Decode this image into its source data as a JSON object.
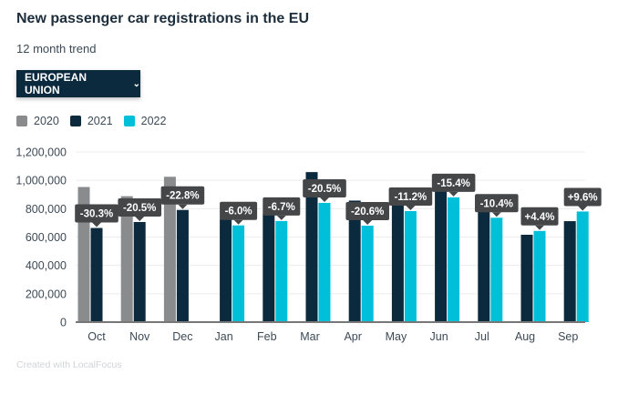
{
  "header": {
    "title": "New passenger car registrations in the EU",
    "subtitle": "12 month trend",
    "dropdown_label": "EUROPEAN UNION"
  },
  "credit": "Created with LocalFocus",
  "chart_data": {
    "type": "bar",
    "title": "New passenger car registrations in the EU",
    "subtitle": "12 month trend",
    "categories": [
      "Oct",
      "Nov",
      "Dec",
      "Jan",
      "Feb",
      "Mar",
      "Apr",
      "May",
      "Jun",
      "Jul",
      "Aug",
      "Sep"
    ],
    "series": [
      {
        "name": "2020",
        "color": "#898b8d",
        "values": [
          953000,
          888000,
          1025000,
          null,
          null,
          null,
          null,
          null,
          null,
          null,
          null,
          null
        ]
      },
      {
        "name": "2021",
        "color": "#0b2a3e",
        "values": [
          664000,
          706000,
          791000,
          726000,
          764000,
          1058000,
          857000,
          882000,
          1040000,
          822000,
          616000,
          712000
        ]
      },
      {
        "name": "2022",
        "color": "#00bfd8",
        "values": [
          null,
          null,
          null,
          682000,
          713000,
          841000,
          680000,
          783000,
          880000,
          736000,
          643000,
          780000
        ]
      }
    ],
    "annotations": [
      "-30.3%",
      "-20.5%",
      "-22.8%",
      "-6.0%",
      "-6.7%",
      "-20.5%",
      "-20.6%",
      "-11.2%",
      "-15.4%",
      "-10.4%",
      "+4.4%",
      "+9.6%"
    ],
    "yticks": [
      "0",
      "200,000",
      "400,000",
      "600,000",
      "800,000",
      "1,000,000",
      "1,200,000"
    ],
    "ylim": [
      0,
      1200000
    ],
    "xlabel": "",
    "ylabel": "",
    "grid": true,
    "legend": "top-left"
  }
}
